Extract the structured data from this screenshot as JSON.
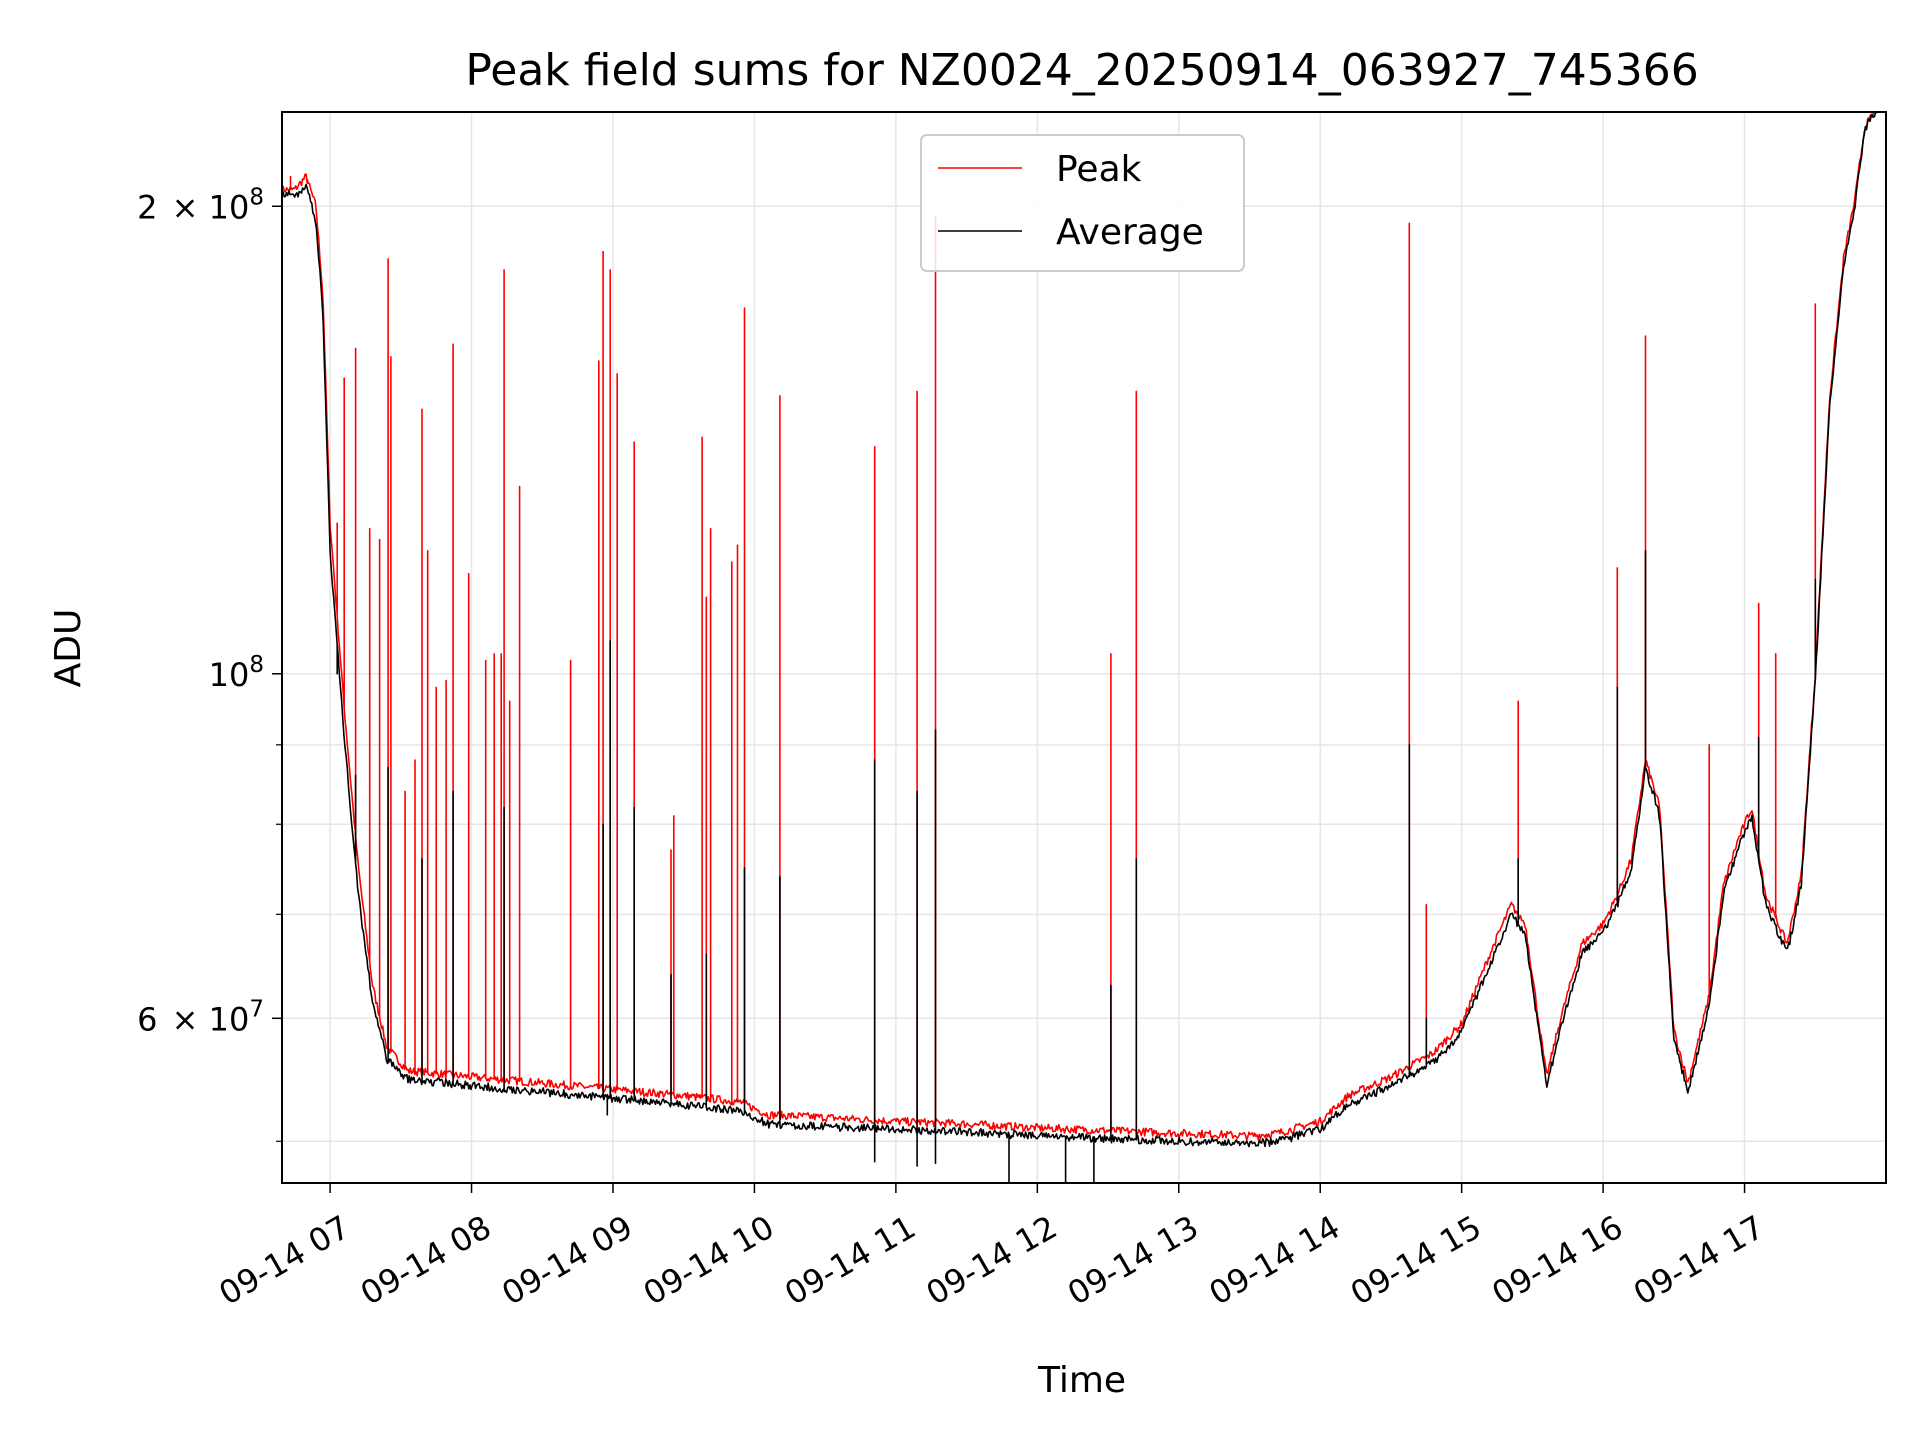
{
  "chart_data": {
    "type": "line",
    "title": "Peak field sums for NZ0024_20250914_063927_745366",
    "xlabel": "Time",
    "ylabel": "ADU",
    "yscale": "log",
    "xlim": [
      6.66,
      18.0
    ],
    "ylim": [
      47000000,
      230000000
    ],
    "x_ticks": [
      {
        "value": 7,
        "label": "09-14 07"
      },
      {
        "value": 8,
        "label": "09-14 08"
      },
      {
        "value": 9,
        "label": "09-14 09"
      },
      {
        "value": 10,
        "label": "09-14 10"
      },
      {
        "value": 11,
        "label": "09-14 11"
      },
      {
        "value": 12,
        "label": "09-14 12"
      },
      {
        "value": 13,
        "label": "09-14 13"
      },
      {
        "value": 14,
        "label": "09-14 14"
      },
      {
        "value": 15,
        "label": "09-14 15"
      },
      {
        "value": 16,
        "label": "09-14 16"
      },
      {
        "value": 17,
        "label": "09-14 17"
      }
    ],
    "y_major_ticks": [
      {
        "value": 60000000,
        "mant": "6",
        "times": "×",
        "base": "10",
        "exp": "7"
      },
      {
        "value": 100000000,
        "mant": "",
        "times": "",
        "base": "10",
        "exp": "8"
      },
      {
        "value": 200000000,
        "mant": "2",
        "times": "×",
        "base": "10",
        "exp": "8"
      }
    ],
    "y_minor_ticks": [
      50000000,
      70000000,
      80000000,
      90000000
    ],
    "grid": true,
    "legend": {
      "location": "upper center",
      "entries": [
        "Peak",
        "Average"
      ]
    },
    "series": [
      {
        "name": "Peak",
        "color": "#ff0000",
        "baseline": [
          [
            6.66,
            205000000
          ],
          [
            6.75,
            205000000
          ],
          [
            6.83,
            209000000
          ],
          [
            6.9,
            200000000
          ],
          [
            6.95,
            175000000
          ],
          [
            7.0,
            125000000
          ],
          [
            7.1,
            95000000
          ],
          [
            7.2,
            75000000
          ],
          [
            7.3,
            63000000
          ],
          [
            7.4,
            57500000
          ],
          [
            7.55,
            55500000
          ],
          [
            8.0,
            55000000
          ],
          [
            8.5,
            54500000
          ],
          [
            9.0,
            54000000
          ],
          [
            9.5,
            53500000
          ],
          [
            9.9,
            53000000
          ],
          [
            10.1,
            52000000
          ],
          [
            10.5,
            51800000
          ],
          [
            11.0,
            51500000
          ],
          [
            11.5,
            51300000
          ],
          [
            12.0,
            51000000
          ],
          [
            12.5,
            50800000
          ],
          [
            13.0,
            50600000
          ],
          [
            13.3,
            50500000
          ],
          [
            13.5,
            50400000
          ],
          [
            13.7,
            50600000
          ],
          [
            14.0,
            51500000
          ],
          [
            14.2,
            53500000
          ],
          [
            14.5,
            55000000
          ],
          [
            14.8,
            57000000
          ],
          [
            15.0,
            59500000
          ],
          [
            15.2,
            66000000
          ],
          [
            15.35,
            71000000
          ],
          [
            15.45,
            69000000
          ],
          [
            15.6,
            55000000
          ],
          [
            15.7,
            60000000
          ],
          [
            15.85,
            67000000
          ],
          [
            16.0,
            69000000
          ],
          [
            16.1,
            72000000
          ],
          [
            16.2,
            76000000
          ],
          [
            16.3,
            88000000
          ],
          [
            16.4,
            82000000
          ],
          [
            16.5,
            59000000
          ],
          [
            16.6,
            54500000
          ],
          [
            16.75,
            62000000
          ],
          [
            16.85,
            73000000
          ],
          [
            16.95,
            78000000
          ],
          [
            17.05,
            82000000
          ],
          [
            17.15,
            72000000
          ],
          [
            17.3,
            67000000
          ],
          [
            17.4,
            74000000
          ],
          [
            17.5,
            100000000
          ],
          [
            17.6,
            150000000
          ],
          [
            17.7,
            185000000
          ],
          [
            17.78,
            202000000
          ],
          [
            17.85,
            225000000
          ],
          [
            17.95,
            232000000
          ],
          [
            18.0,
            232000000
          ]
        ],
        "spikes": [
          [
            6.72,
            209000000
          ],
          [
            6.84,
            208000000
          ],
          [
            7.05,
            125000000
          ],
          [
            7.1,
            155000000
          ],
          [
            7.18,
            162000000
          ],
          [
            7.28,
            124000000
          ],
          [
            7.35,
            122000000
          ],
          [
            7.41,
            185000000
          ],
          [
            7.43,
            160000000
          ],
          [
            7.53,
            84000000
          ],
          [
            7.6,
            88000000
          ],
          [
            7.65,
            148000000
          ],
          [
            7.69,
            120000000
          ],
          [
            7.75,
            98000000
          ],
          [
            7.82,
            99000000
          ],
          [
            7.87,
            163000000
          ],
          [
            7.98,
            116000000
          ],
          [
            8.1,
            102000000
          ],
          [
            8.16,
            103000000
          ],
          [
            8.21,
            103000000
          ],
          [
            8.23,
            182000000
          ],
          [
            8.27,
            96000000
          ],
          [
            8.34,
            132000000
          ],
          [
            8.7,
            102000000
          ],
          [
            8.9,
            159000000
          ],
          [
            8.93,
            187000000
          ],
          [
            8.98,
            182000000
          ],
          [
            9.03,
            156000000
          ],
          [
            9.15,
            141000000
          ],
          [
            9.41,
            77000000
          ],
          [
            9.43,
            81000000
          ],
          [
            9.63,
            142000000
          ],
          [
            9.66,
            112000000
          ],
          [
            9.69,
            124000000
          ],
          [
            9.84,
            118000000
          ],
          [
            9.88,
            121000000
          ],
          [
            9.93,
            172000000
          ],
          [
            10.18,
            151000000
          ],
          [
            10.85,
            140000000
          ],
          [
            11.15,
            152000000
          ],
          [
            11.28,
            197000000
          ],
          [
            12.52,
            103000000
          ],
          [
            12.7,
            152000000
          ],
          [
            14.63,
            195000000
          ],
          [
            14.75,
            71000000
          ],
          [
            15.4,
            96000000
          ],
          [
            16.1,
            117000000
          ],
          [
            16.3,
            165000000
          ],
          [
            16.75,
            90000000
          ],
          [
            17.1,
            111000000
          ],
          [
            17.22,
            103000000
          ],
          [
            17.5,
            173000000
          ]
        ]
      },
      {
        "name": "Average",
        "color": "#000000",
        "baseline": [
          [
            6.66,
            204000000
          ],
          [
            6.75,
            203000000
          ],
          [
            6.83,
            206000000
          ],
          [
            6.9,
            196000000
          ],
          [
            6.95,
            170000000
          ],
          [
            7.0,
            120000000
          ],
          [
            7.1,
            91000000
          ],
          [
            7.2,
            72000000
          ],
          [
            7.3,
            61500000
          ],
          [
            7.4,
            56500000
          ],
          [
            7.55,
            54800000
          ],
          [
            8.0,
            54300000
          ],
          [
            8.5,
            53800000
          ],
          [
            9.0,
            53300000
          ],
          [
            9.5,
            52800000
          ],
          [
            9.9,
            52300000
          ],
          [
            10.1,
            51300000
          ],
          [
            10.5,
            51100000
          ],
          [
            11.0,
            50900000
          ],
          [
            11.5,
            50700000
          ],
          [
            12.0,
            50400000
          ],
          [
            12.5,
            50200000
          ],
          [
            13.0,
            50000000
          ],
          [
            13.3,
            49900000
          ],
          [
            13.5,
            49800000
          ],
          [
            13.7,
            50000000
          ],
          [
            14.0,
            50900000
          ],
          [
            14.2,
            52800000
          ],
          [
            14.5,
            54300000
          ],
          [
            14.8,
            56200000
          ],
          [
            15.0,
            58800000
          ],
          [
            15.2,
            65000000
          ],
          [
            15.35,
            70000000
          ],
          [
            15.45,
            68000000
          ],
          [
            15.6,
            54200000
          ],
          [
            15.7,
            59200000
          ],
          [
            15.85,
            66000000
          ],
          [
            16.0,
            68200000
          ],
          [
            16.1,
            71000000
          ],
          [
            16.2,
            75000000
          ],
          [
            16.3,
            87000000
          ],
          [
            16.4,
            81000000
          ],
          [
            16.5,
            58200000
          ],
          [
            16.6,
            53800000
          ],
          [
            16.75,
            61000000
          ],
          [
            16.85,
            72000000
          ],
          [
            16.95,
            77000000
          ],
          [
            17.05,
            81000000
          ],
          [
            17.15,
            71000000
          ],
          [
            17.3,
            66000000
          ],
          [
            17.4,
            73000000
          ],
          [
            17.5,
            99000000
          ],
          [
            17.6,
            148000000
          ],
          [
            17.7,
            183000000
          ],
          [
            17.78,
            200000000
          ],
          [
            17.85,
            224000000
          ],
          [
            17.95,
            232000000
          ],
          [
            18.0,
            232000000
          ]
        ],
        "spikes": [
          [
            7.05,
            100000000
          ],
          [
            7.18,
            86000000
          ],
          [
            7.41,
            87000000
          ],
          [
            7.65,
            76000000
          ],
          [
            7.87,
            84000000
          ],
          [
            8.23,
            82000000
          ],
          [
            8.93,
            80000000
          ],
          [
            8.98,
            105000000
          ],
          [
            9.15,
            82000000
          ],
          [
            9.41,
            64000000
          ],
          [
            9.66,
            66000000
          ],
          [
            9.93,
            75000000
          ],
          [
            10.18,
            74000000
          ],
          [
            10.85,
            88000000
          ],
          [
            11.15,
            84000000
          ],
          [
            11.28,
            92000000
          ],
          [
            12.52,
            63000000
          ],
          [
            12.7,
            76000000
          ],
          [
            14.63,
            90000000
          ],
          [
            14.75,
            60000000
          ],
          [
            15.4,
            76000000
          ],
          [
            16.1,
            98000000
          ],
          [
            16.3,
            120000000
          ],
          [
            17.1,
            91000000
          ],
          [
            17.5,
            115000000
          ]
        ],
        "dips": [
          [
            10.85,
            48500000
          ],
          [
            11.15,
            48200000
          ],
          [
            11.28,
            48400000
          ],
          [
            11.8,
            47000000
          ],
          [
            12.2,
            46500000
          ],
          [
            12.4,
            45000000
          ],
          [
            8.96,
            52000000
          ]
        ]
      }
    ]
  }
}
